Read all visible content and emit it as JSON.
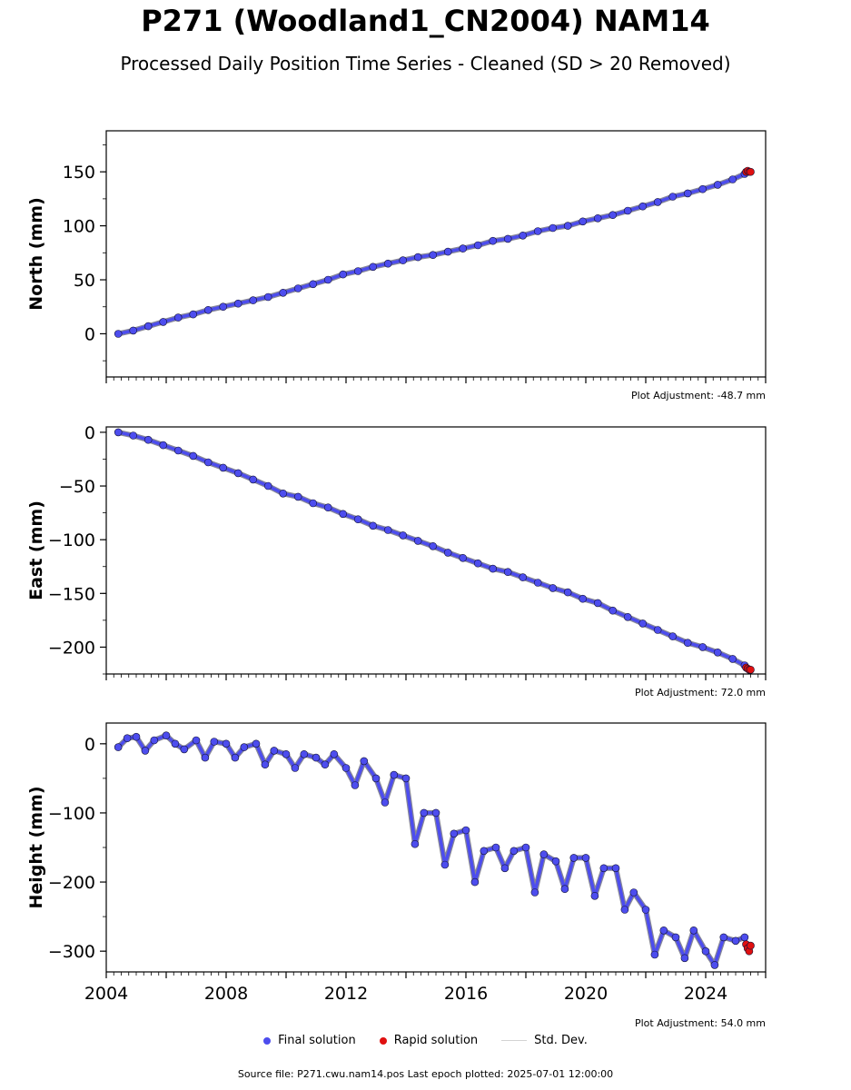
{
  "figure": {
    "title": "P271 (Woodland1_CN2004) NAM14",
    "subtitle": "Processed Daily Position Time Series - Cleaned (SD > 20 Removed)",
    "source": "Source file: P271.cwu.nam14.pos  Last epoch plotted: 2025-07-01 12:00:00"
  },
  "legend": {
    "final_label": "Final solution",
    "rapid_label": "Rapid solution",
    "std_label": "Std. Dev."
  },
  "colors": {
    "final": "#4d4dee",
    "rapid": "#e01010",
    "std": "#d3d3d3",
    "edge": "#111133"
  },
  "chart_data": [
    {
      "type": "scatter",
      "ylabel": "North (mm)",
      "adjustment": "Plot Adjustment: -48.7 mm",
      "xlim": [
        2004.0,
        2026.0
      ],
      "ylim": [
        -40,
        188
      ],
      "yticks": [
        0,
        50,
        100,
        150
      ],
      "xticks": [
        "2004",
        "2008",
        "2012",
        "2016",
        "2020",
        "2024"
      ],
      "x_tick_values": [
        2004,
        2008,
        2012,
        2016,
        2020,
        2024
      ],
      "series": [
        {
          "kind": "final",
          "x": [
            2004.4,
            2004.9,
            2005.4,
            2005.9,
            2006.4,
            2006.9,
            2007.4,
            2007.9,
            2008.4,
            2008.9,
            2009.4,
            2009.9,
            2010.4,
            2010.9,
            2011.4,
            2011.9,
            2012.4,
            2012.9,
            2013.4,
            2013.9,
            2014.4,
            2014.9,
            2015.4,
            2015.9,
            2016.4,
            2016.9,
            2017.4,
            2017.9,
            2018.4,
            2018.9,
            2019.4,
            2019.9,
            2020.4,
            2020.9,
            2021.4,
            2021.9,
            2022.4,
            2022.9,
            2023.4,
            2023.9,
            2024.4,
            2024.9,
            2025.3
          ],
          "y": [
            0,
            3,
            7,
            11,
            15,
            18,
            22,
            25,
            28,
            31,
            34,
            38,
            42,
            46,
            50,
            55,
            58,
            62,
            65,
            68,
            71,
            73,
            76,
            79,
            82,
            86,
            88,
            91,
            95,
            98,
            100,
            104,
            107,
            110,
            114,
            118,
            122,
            127,
            130,
            134,
            138,
            143,
            148
          ]
        },
        {
          "kind": "rapid",
          "x": [
            2025.35,
            2025.4,
            2025.45,
            2025.5
          ],
          "y": [
            150,
            151,
            150,
            150
          ]
        }
      ]
    },
    {
      "type": "scatter",
      "ylabel": "East (mm)",
      "adjustment": "Plot Adjustment: 72.0 mm",
      "xlim": [
        2004.0,
        2026.0
      ],
      "ylim": [
        -225,
        5
      ],
      "yticks": [
        0,
        -50,
        -100,
        -150,
        -200
      ],
      "xticks": [
        "2004",
        "2008",
        "2012",
        "2016",
        "2020",
        "2024"
      ],
      "x_tick_values": [
        2004,
        2008,
        2012,
        2016,
        2020,
        2024
      ],
      "series": [
        {
          "kind": "final",
          "x": [
            2004.4,
            2004.9,
            2005.4,
            2005.9,
            2006.4,
            2006.9,
            2007.4,
            2007.9,
            2008.4,
            2008.9,
            2009.4,
            2009.9,
            2010.4,
            2010.9,
            2011.4,
            2011.9,
            2012.4,
            2012.9,
            2013.4,
            2013.9,
            2014.4,
            2014.9,
            2015.4,
            2015.9,
            2016.4,
            2016.9,
            2017.4,
            2017.9,
            2018.4,
            2018.9,
            2019.4,
            2019.9,
            2020.4,
            2020.9,
            2021.4,
            2021.9,
            2022.4,
            2022.9,
            2023.4,
            2023.9,
            2024.4,
            2024.9,
            2025.3
          ],
          "y": [
            0,
            -3,
            -7,
            -12,
            -17,
            -22,
            -28,
            -33,
            -38,
            -44,
            -50,
            -57,
            -60,
            -66,
            -70,
            -76,
            -81,
            -87,
            -91,
            -96,
            -101,
            -106,
            -112,
            -117,
            -122,
            -127,
            -130,
            -135,
            -140,
            -145,
            -149,
            -155,
            -159,
            -166,
            -172,
            -178,
            -184,
            -190,
            -196,
            -200,
            -205,
            -211,
            -217
          ]
        },
        {
          "kind": "rapid",
          "x": [
            2025.35,
            2025.4,
            2025.45,
            2025.5
          ],
          "y": [
            -219,
            -220,
            -221,
            -221
          ]
        }
      ]
    },
    {
      "type": "scatter",
      "ylabel": "Height (mm)",
      "adjustment": "Plot Adjustment: 54.0 mm",
      "xlim": [
        2004.0,
        2026.0
      ],
      "ylim": [
        -330,
        30
      ],
      "yticks": [
        0,
        -100,
        -200,
        -300
      ],
      "xticks": [
        "2004",
        "2008",
        "2012",
        "2016",
        "2020",
        "2024"
      ],
      "x_tick_values": [
        2004,
        2008,
        2012,
        2016,
        2020,
        2024
      ],
      "series": [
        {
          "kind": "final",
          "x": [
            2004.4,
            2004.7,
            2005.0,
            2005.3,
            2005.6,
            2006.0,
            2006.3,
            2006.6,
            2007.0,
            2007.3,
            2007.6,
            2008.0,
            2008.3,
            2008.6,
            2009.0,
            2009.3,
            2009.6,
            2010.0,
            2010.3,
            2010.6,
            2011.0,
            2011.3,
            2011.6,
            2012.0,
            2012.3,
            2012.6,
            2013.0,
            2013.3,
            2013.6,
            2014.0,
            2014.3,
            2014.6,
            2015.0,
            2015.3,
            2015.6,
            2016.0,
            2016.3,
            2016.6,
            2017.0,
            2017.3,
            2017.6,
            2018.0,
            2018.3,
            2018.6,
            2019.0,
            2019.3,
            2019.6,
            2020.0,
            2020.3,
            2020.6,
            2021.0,
            2021.3,
            2021.6,
            2022.0,
            2022.3,
            2022.6,
            2023.0,
            2023.3,
            2023.6,
            2024.0,
            2024.3,
            2024.6,
            2025.0,
            2025.3
          ],
          "y": [
            -5,
            8,
            10,
            -10,
            5,
            12,
            0,
            -8,
            5,
            -20,
            3,
            0,
            -20,
            -5,
            0,
            -30,
            -10,
            -15,
            -35,
            -15,
            -20,
            -30,
            -15,
            -35,
            -60,
            -25,
            -50,
            -85,
            -45,
            -50,
            -145,
            -100,
            -100,
            -175,
            -130,
            -125,
            -200,
            -155,
            -150,
            -180,
            -155,
            -150,
            -215,
            -160,
            -170,
            -210,
            -165,
            -165,
            -220,
            -180,
            -180,
            -240,
            -215,
            -240,
            -305,
            -270,
            -280,
            -310,
            -270,
            -300,
            -320,
            -280,
            -285,
            -280
          ]
        },
        {
          "kind": "rapid",
          "x": [
            2025.35,
            2025.4,
            2025.45,
            2025.5
          ],
          "y": [
            -290,
            -296,
            -300,
            -292
          ]
        }
      ]
    }
  ]
}
